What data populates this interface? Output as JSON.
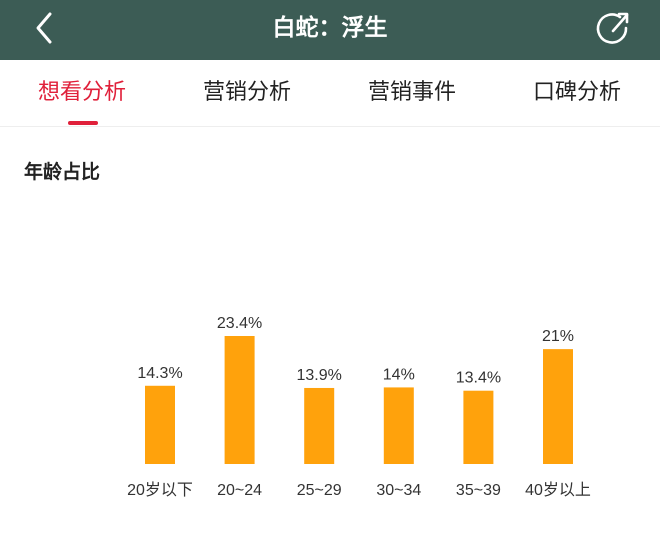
{
  "header": {
    "title": "白蛇：浮生",
    "back_icon": "chevron-left-icon",
    "share_icon": "share-icon"
  },
  "tabs": [
    {
      "label": "想看分析",
      "active": true
    },
    {
      "label": "营销分析",
      "active": false
    },
    {
      "label": "营销事件",
      "active": false
    },
    {
      "label": "口碑分析",
      "active": false
    }
  ],
  "section": {
    "title": "年龄占比"
  },
  "colors": {
    "header_bg": "#3c5c55",
    "accent": "#e0203a",
    "bar": "#ffa20c"
  },
  "chart_data": {
    "type": "bar",
    "categories": [
      "20岁以下",
      "20~24",
      "25~29",
      "30~34",
      "35~39",
      "40岁以上"
    ],
    "values": [
      14.3,
      23.4,
      13.9,
      14,
      13.4,
      21
    ],
    "value_labels": [
      "14.3%",
      "23.4%",
      "13.9%",
      "14%",
      "13.4%",
      "21%"
    ],
    "unit": "%",
    "grid": false,
    "legend": "none"
  }
}
